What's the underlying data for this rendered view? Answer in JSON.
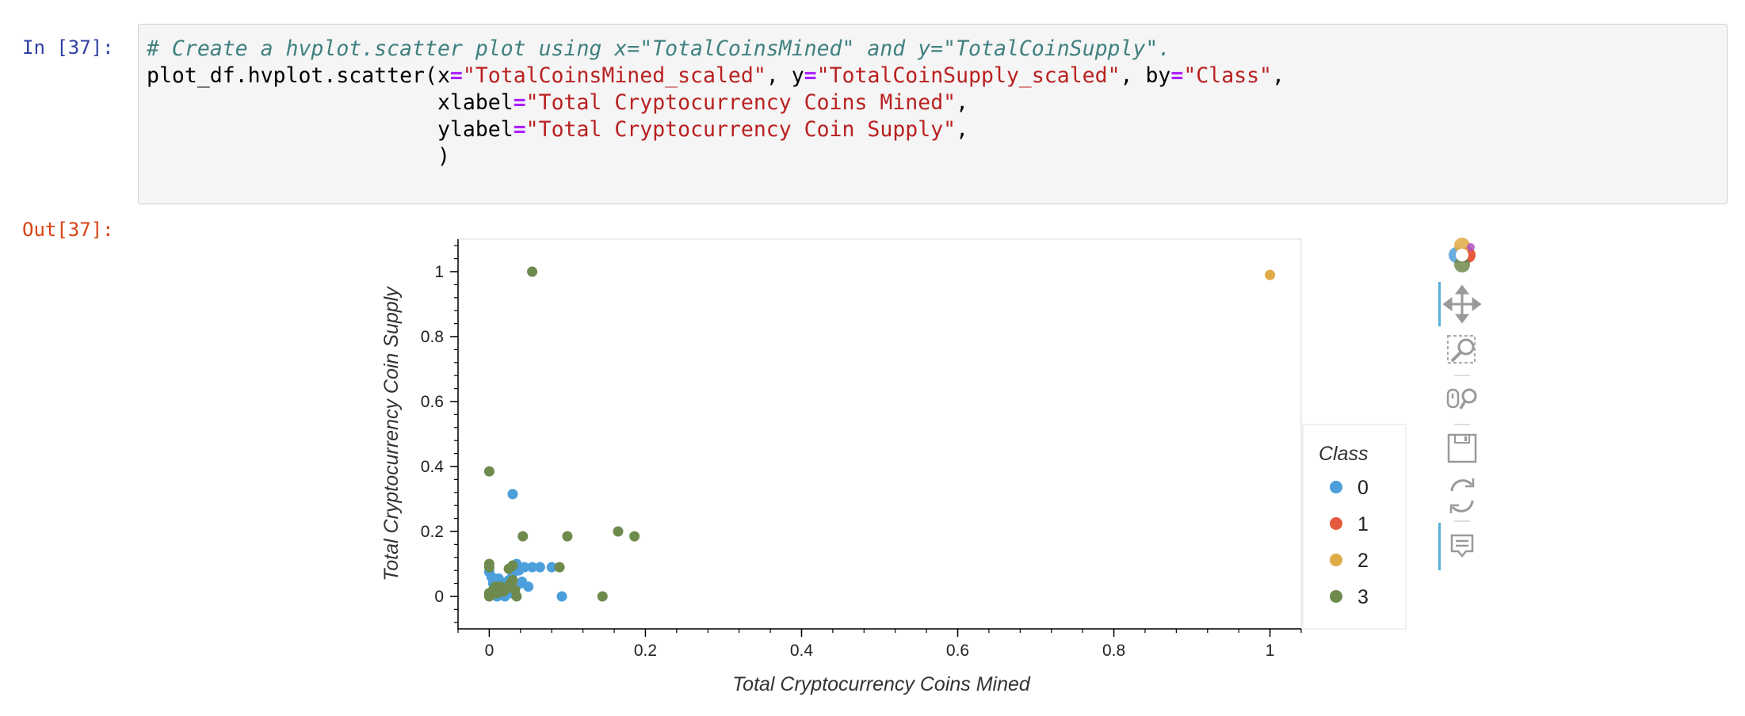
{
  "notebook": {
    "input_prompt": "In [37]:",
    "output_prompt": "Out[37]:"
  },
  "code_lines": [
    [
      {
        "t": "comment",
        "v": "# Create a hvplot.scatter plot using x=\"TotalCoinsMined\" and y=\"TotalCoinSupply\"."
      }
    ],
    [
      {
        "t": "plain",
        "v": "plot_df.hvplot.scatter(x"
      },
      {
        "t": "op",
        "v": "="
      },
      {
        "t": "str",
        "v": "\"TotalCoinsMined_scaled\""
      },
      {
        "t": "plain",
        "v": ", y"
      },
      {
        "t": "op",
        "v": "="
      },
      {
        "t": "str",
        "v": "\"TotalCoinSupply_scaled\""
      },
      {
        "t": "plain",
        "v": ", by"
      },
      {
        "t": "op",
        "v": "="
      },
      {
        "t": "str",
        "v": "\"Class\""
      },
      {
        "t": "plain",
        "v": ","
      }
    ],
    [
      {
        "t": "plain",
        "v": "                       xlabel"
      },
      {
        "t": "op",
        "v": "="
      },
      {
        "t": "str",
        "v": "\"Total Cryptocurrency Coins Mined\""
      },
      {
        "t": "plain",
        "v": ","
      }
    ],
    [
      {
        "t": "plain",
        "v": "                       ylabel"
      },
      {
        "t": "op",
        "v": "="
      },
      {
        "t": "str",
        "v": "\"Total Cryptocurrency Coin Supply\""
      },
      {
        "t": "plain",
        "v": ","
      }
    ],
    [
      {
        "t": "plain",
        "v": "                       )"
      }
    ]
  ],
  "chart_data": {
    "type": "scatter",
    "xlabel": "Total Cryptocurrency Coins Mined",
    "ylabel": "Total Cryptocurrency Coin Supply",
    "xlim": [
      -0.04,
      1.04
    ],
    "ylim": [
      -0.1,
      1.1
    ],
    "xticks": [
      0,
      0.2,
      0.4,
      0.6,
      0.8,
      1
    ],
    "yticks": [
      0,
      0.2,
      0.4,
      0.6,
      0.8,
      1
    ],
    "grid": false,
    "legend": {
      "title": "Class",
      "placement": "right"
    },
    "series": [
      {
        "name": "0",
        "color": "#4c9fda",
        "x": [
          0.0,
          0.003,
          0.005,
          0.008,
          0.01,
          0.012,
          0.015,
          0.018,
          0.02,
          0.022,
          0.025,
          0.028,
          0.03,
          0.032,
          0.035,
          0.038,
          0.04,
          0.045,
          0.05,
          0.03,
          0.065,
          0.08,
          0.093,
          0.012,
          0.042,
          0.055,
          0.007,
          0.02
        ],
        "y": [
          0.075,
          0.06,
          0.04,
          0.02,
          0.0,
          0.03,
          0.01,
          0.04,
          0.0,
          0.02,
          0.05,
          0.01,
          0.07,
          0.09,
          0.1,
          0.08,
          0.04,
          0.09,
          0.03,
          0.315,
          0.09,
          0.09,
          0.0,
          0.055,
          0.045,
          0.09,
          0.015,
          0.025
        ]
      },
      {
        "name": "1",
        "color": "#e5593d",
        "x": [],
        "y": []
      },
      {
        "name": "2",
        "color": "#e0aa45",
        "x": [
          1.0
        ],
        "y": [
          0.99
        ]
      },
      {
        "name": "3",
        "color": "#6e8a4d",
        "x": [
          0.055,
          0.0,
          0.043,
          0.1,
          0.165,
          0.186,
          0.145,
          0.0,
          0.0,
          0.0,
          0.005,
          0.01,
          0.015,
          0.02,
          0.025,
          0.03,
          0.035,
          0.03,
          0.09,
          0.012,
          0.003,
          0.008,
          0.018,
          0.027,
          0.033,
          0.0,
          0.0
        ],
        "y": [
          1.0,
          0.385,
          0.185,
          0.185,
          0.2,
          0.185,
          0.0,
          0.1,
          0.09,
          0.0,
          0.02,
          0.01,
          0.03,
          0.02,
          0.085,
          0.05,
          0.0,
          0.095,
          0.09,
          0.025,
          0.005,
          0.03,
          0.015,
          0.04,
          0.02,
          0.01,
          0.005
        ]
      }
    ]
  },
  "toolbar": {
    "tools": [
      "bokeh-logo-icon",
      "pan-icon",
      "box-zoom-icon",
      "wheel-zoom-icon",
      "save-icon",
      "reset-icon",
      "hover-icon"
    ]
  }
}
